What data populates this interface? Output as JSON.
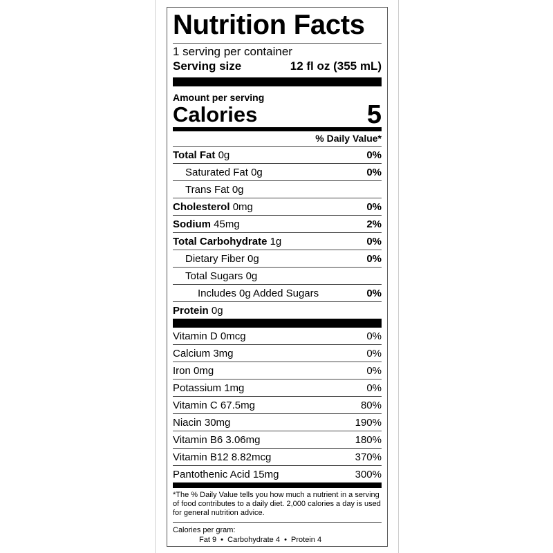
{
  "title": "Nutrition Facts",
  "servings": "1 serving per container",
  "serving_size_label": "Serving size",
  "serving_size_value": "12 fl oz (355 mL)",
  "amount_per_serving": "Amount per serving",
  "calories_label": "Calories",
  "calories_value": "5",
  "dv_header": "% Daily Value*",
  "nutrients": [
    {
      "name": "Total Fat",
      "amount": "0g",
      "dv": "0%"
    },
    {
      "name": "Saturated Fat",
      "amount": "0g",
      "dv": "0%"
    },
    {
      "name": "Trans Fat",
      "amount": "0g",
      "dv": ""
    },
    {
      "name": "Cholesterol",
      "amount": "0mg",
      "dv": "0%"
    },
    {
      "name": "Sodium",
      "amount": "45mg",
      "dv": "2%"
    },
    {
      "name": "Total Carbohydrate",
      "amount": "1g",
      "dv": "0%"
    },
    {
      "name": "Dietary Fiber",
      "amount": "0g",
      "dv": "0%"
    },
    {
      "name": "Total Sugars",
      "amount": "0g",
      "dv": ""
    },
    {
      "name": "Includes 0g Added Sugars",
      "amount": "",
      "dv": "0%"
    },
    {
      "name": "Protein",
      "amount": "0g",
      "dv": ""
    }
  ],
  "vitamins": [
    {
      "name": "Vitamin D 0mcg",
      "dv": "0%"
    },
    {
      "name": "Calcium 3mg",
      "dv": "0%"
    },
    {
      "name": "Iron 0mg",
      "dv": "0%"
    },
    {
      "name": "Potassium 1mg",
      "dv": "0%"
    },
    {
      "name": "Vitamin C 67.5mg",
      "dv": "80%"
    },
    {
      "name": "Niacin 30mg",
      "dv": "190%"
    },
    {
      "name": "Vitamin B6 3.06mg",
      "dv": "180%"
    },
    {
      "name": "Vitamin B12 8.82mcg",
      "dv": "370%"
    },
    {
      "name": "Pantothenic Acid 15mg",
      "dv": "300%"
    }
  ],
  "footnote": "*The % Daily Value tells you how much a nutrient in a serving of food contributes to a daily diet. 2,000 calories a day is used for general nutrition advice.",
  "calories_per_gram": "Calories per gram:",
  "cpg_values": "Fat 9  •  Carbohydrate 4  •  Protein 4"
}
